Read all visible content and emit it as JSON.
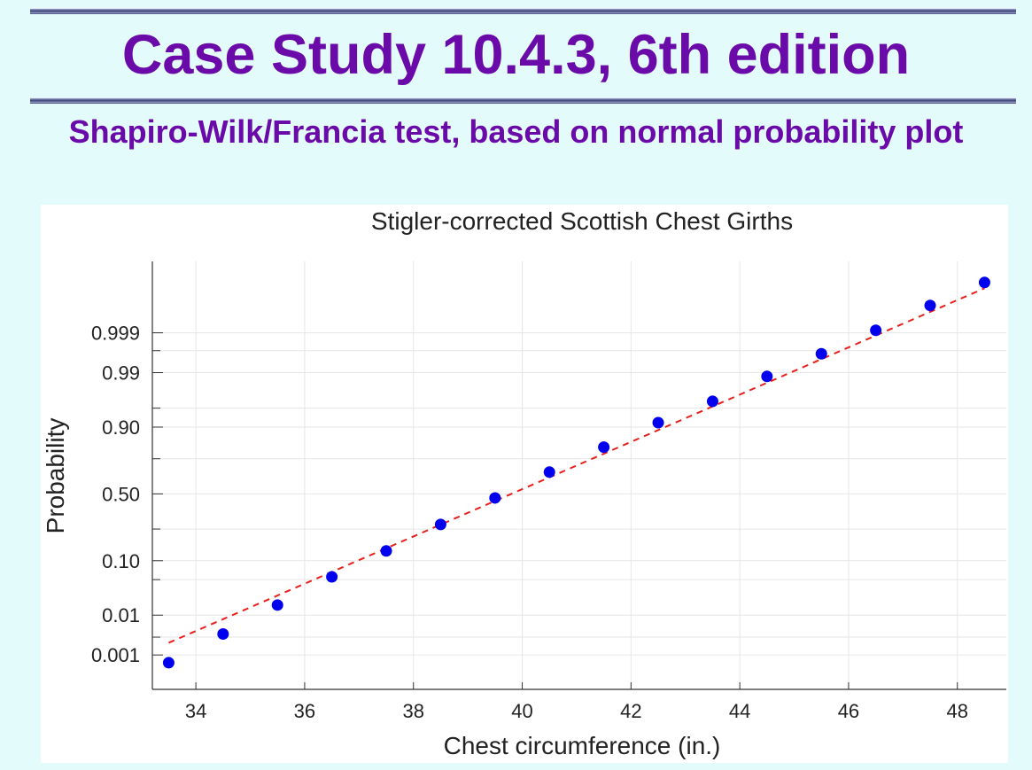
{
  "header": {
    "title": "Case Study 10.4.3, 6th edition",
    "subtitle": "Shapiro-Wilk/Francia test, based on normal probability plot"
  },
  "colors": {
    "title": "#6a0aa8",
    "background": "#e4fbfb",
    "points": "#0000ee",
    "fit_line": "#e8201c",
    "grid": "#e6e6e6"
  },
  "chart_data": {
    "type": "scatter",
    "title": "Stigler-corrected Scottish Chest Girths",
    "xlabel": "Chest circumference (in.)",
    "ylabel": "Probability",
    "y_scale": "normal-probability",
    "xlim": [
      33.2,
      48.9
    ],
    "x_ticks": [
      34,
      36,
      38,
      40,
      42,
      44,
      46,
      48
    ],
    "x_tick_labels": [
      "34",
      "36",
      "38",
      "40",
      "42",
      "44",
      "46",
      "48"
    ],
    "y_ticks": [
      0.001,
      0.01,
      0.1,
      0.5,
      0.9,
      0.99,
      0.999
    ],
    "y_tick_labels": [
      "0.001",
      "0.01",
      "0.10",
      "0.50",
      "0.90",
      "0.99",
      "0.999"
    ],
    "y_minor_ticks": [
      0.003,
      0.05,
      0.25,
      0.75,
      0.95,
      0.997
    ],
    "grid": true,
    "series": [
      {
        "style": "points",
        "x": [
          33.5,
          34.5,
          35.5,
          36.5,
          37.5,
          38.5,
          39.5,
          40.5,
          41.5,
          42.5,
          43.5,
          44.5,
          45.5,
          46.5,
          47.5,
          48.5
        ],
        "y": [
          0.0006,
          0.0036,
          0.0165,
          0.0558,
          0.137,
          0.279,
          0.469,
          0.662,
          0.815,
          0.914,
          0.9621,
          0.9879,
          0.9964,
          0.99915,
          0.99985,
          0.999975
        ]
      },
      {
        "style": "dashed-line",
        "x": [
          33.5,
          48.5
        ],
        "y": [
          0.00214,
          0.99996
        ]
      }
    ]
  }
}
